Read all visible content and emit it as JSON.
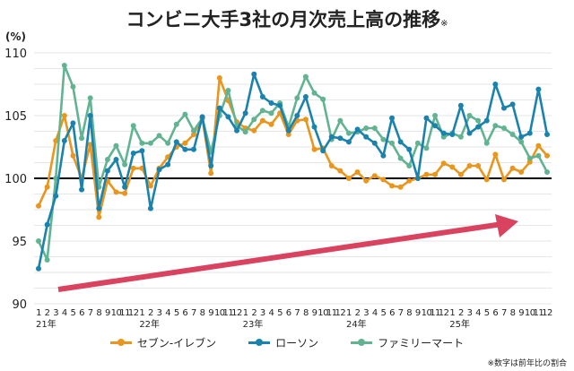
{
  "title": "コンビニ大手3社の月次売上高の推移",
  "title_mark": "※",
  "unit": "(%)",
  "note": "※数字は前年比の割合",
  "chart_data": {
    "type": "line",
    "ylim": [
      90,
      110
    ],
    "yticks": [
      90,
      95,
      100,
      105,
      110
    ],
    "reference_line": 100,
    "grid": true,
    "legend_position": "bottom",
    "month_labels": [
      "1",
      "2",
      "3",
      "4",
      "5",
      "6",
      "7",
      "8",
      "9",
      "10",
      "11",
      "12"
    ],
    "years": [
      "21年",
      "22年",
      "23年",
      "24年",
      "25年"
    ],
    "x_start": "2021-01",
    "x_end": "2025-12",
    "series": [
      {
        "name": "セブン-イレブン",
        "color": "#e8961e",
        "values": [
          97.8,
          99.3,
          103,
          105,
          101.8,
          100,
          102.7,
          96.9,
          99.8,
          98.9,
          98.8,
          100.8,
          100.8,
          99.4,
          100.8,
          101.7,
          102.5,
          102.8,
          103.5,
          104.8,
          100.4,
          108,
          106.2,
          104.5,
          104,
          103.8,
          104.6,
          104.3,
          105.2,
          103.5,
          104.6,
          104.7,
          102.3,
          102.4,
          101,
          100.6,
          100,
          100.5,
          99.8,
          100.2,
          99.9,
          99.4,
          99.3,
          99.8,
          100,
          100.3,
          100.3,
          101.2,
          100.9,
          100.3,
          101,
          101,
          99.9,
          101.9,
          99.9,
          100.8,
          100.5,
          101.3,
          102.6,
          101.8
        ]
      },
      {
        "name": "ローソン",
        "color": "#1a82ad",
        "values": [
          92.8,
          96.3,
          98.6,
          103,
          104.4,
          99.1,
          105,
          97.6,
          100.6,
          101.5,
          99.3,
          102,
          102.2,
          97.6,
          100.7,
          101.1,
          102.9,
          102.3,
          102.3,
          104.9,
          101,
          105.6,
          104.9,
          103.8,
          105.2,
          108.3,
          106.5,
          106,
          105.8,
          103.8,
          105,
          106.5,
          104.1,
          102.2,
          103.3,
          103.2,
          102.9,
          103.9,
          103.3,
          102.8,
          101.8,
          104.8,
          102.9,
          102.3,
          100,
          104.8,
          104.2,
          103.6,
          103.5,
          105.8,
          103.6,
          104.1,
          104.6,
          107.5,
          105.6,
          105.9,
          103.3,
          103.6,
          107.1,
          103.5
        ]
      },
      {
        "name": "ファミリーマート",
        "color": "#62b391",
        "values": [
          95,
          93.5,
          100,
          109,
          107.3,
          103.2,
          106.4,
          99.3,
          101.5,
          102.6,
          101.1,
          104.2,
          102.8,
          102.8,
          103.4,
          102.8,
          104.3,
          105.1,
          103.8,
          104.8,
          102.1,
          105,
          107,
          104.2,
          103.7,
          104.7,
          105.4,
          105.2,
          106,
          104.1,
          106.4,
          108.1,
          106.8,
          106.3,
          103.1,
          104.6,
          103.6,
          103.7,
          104,
          104,
          103.1,
          102.8,
          101.6,
          101,
          102.8,
          102.4,
          105,
          103.3,
          103.6,
          103.3,
          105,
          104.6,
          102.8,
          104.2,
          104,
          103.5,
          102.9,
          101.6,
          101.8,
          100.5
        ]
      }
    ],
    "trend_arrow_color": "#d9435f"
  }
}
